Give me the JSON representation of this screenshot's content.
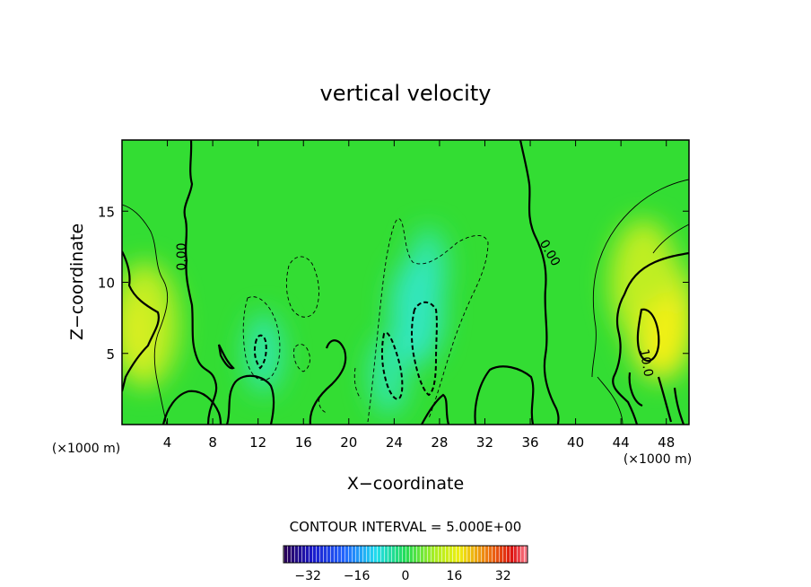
{
  "chart_data": {
    "type": "heatmap",
    "title": "vertical velocity",
    "xlabel": "X−coordinate",
    "ylabel": "Z−coordinate",
    "x_unit": "(×1000 m)",
    "z_unit": "(×1000 m)",
    "xlim": [
      0,
      50
    ],
    "ylim": [
      0,
      20
    ],
    "x_ticks": [
      4,
      8,
      12,
      16,
      20,
      24,
      28,
      32,
      36,
      40,
      44,
      48
    ],
    "x_tick_labels": [
      "4",
      "8",
      "12",
      "16",
      "20",
      "24",
      "28",
      "32",
      "36",
      "40",
      "44",
      "48"
    ],
    "y_ticks": [
      5,
      10,
      15
    ],
    "y_tick_labels": [
      "5",
      "10",
      "15"
    ],
    "contour_interval_text": "CONTOUR INTERVAL = 5.000E+00",
    "contour_labels": [
      "0.00",
      "0.00",
      "10.0"
    ],
    "colorbar": {
      "range": [
        -40,
        40
      ],
      "ticks": [
        -32,
        -16,
        0,
        16,
        32
      ],
      "tick_labels": [
        "−32",
        "−16",
        "0",
        "16",
        "32"
      ]
    },
    "field_features": [
      {
        "kind": "updraft",
        "x": 2,
        "z": 7,
        "w": 9
      },
      {
        "kind": "updraft",
        "x": 47.5,
        "z": 7.5,
        "w": 12
      },
      {
        "kind": "updraft",
        "x": 46,
        "z": 10,
        "w": 8
      },
      {
        "kind": "downdraft",
        "x": 12.5,
        "z": 5,
        "w": -6
      },
      {
        "kind": "downdraft",
        "x": 26,
        "z": 7,
        "w": -8
      },
      {
        "kind": "downdraft",
        "x": 23.5,
        "z": 3.5,
        "w": -6
      },
      {
        "kind": "downdraft",
        "x": 27,
        "z": 11,
        "w": -5
      }
    ]
  }
}
